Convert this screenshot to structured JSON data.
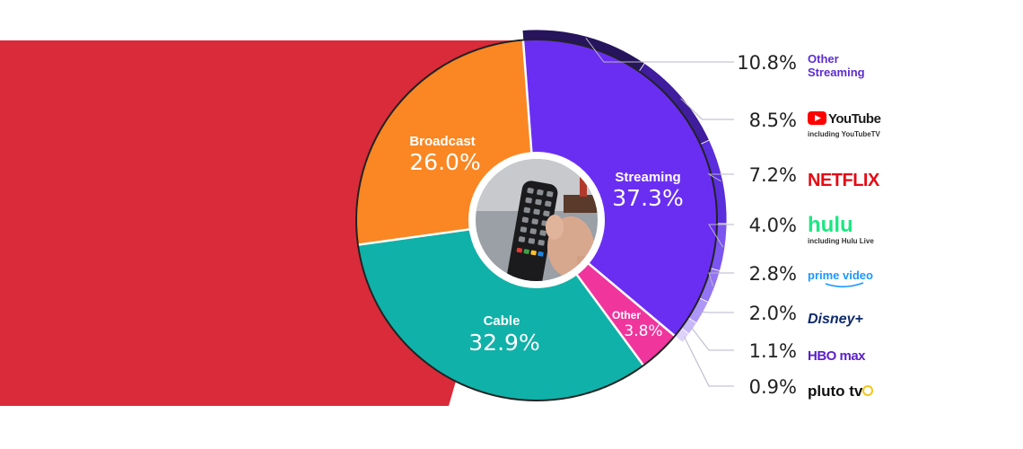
{
  "chart_data": {
    "type": "pie",
    "donut": true,
    "segments": [
      {
        "name": "Streaming",
        "value": 37.3,
        "label": "37.3%",
        "color": "#6a2ef2"
      },
      {
        "name": "Other",
        "value": 3.8,
        "label": "3.8%",
        "color": "#f0359d"
      },
      {
        "name": "Cable",
        "value": 32.9,
        "label": "32.9%",
        "color": "#10b1a8"
      },
      {
        "name": "Broadcast",
        "value": 26.0,
        "label": "26.0%",
        "color": "#fa8723"
      }
    ],
    "streaming_breakdown": [
      {
        "name": "Other Streaming",
        "value": 10.8,
        "label": "10.8%",
        "color": "#26145c",
        "brand": "other-streaming"
      },
      {
        "name": "YouTube",
        "sub": "including YouTubeTV",
        "value": 8.5,
        "label": "8.5%",
        "color": "#3f1d9e",
        "brand": "youtube"
      },
      {
        "name": "NETFLIX",
        "value": 7.2,
        "label": "7.2%",
        "color": "#5a2edc",
        "brand": "netflix"
      },
      {
        "name": "hulu",
        "sub": "including Hulu Live",
        "value": 4.0,
        "label": "4.0%",
        "color": "#7c55f0",
        "brand": "hulu"
      },
      {
        "name": "prime video",
        "value": 2.8,
        "label": "2.8%",
        "color": "#9374f2",
        "brand": "prime"
      },
      {
        "name": "Disney+",
        "value": 2.0,
        "label": "2.0%",
        "color": "#ad96f5",
        "brand": "disney"
      },
      {
        "name": "HBO max",
        "value": 1.1,
        "label": "1.1%",
        "color": "#c6b7f8",
        "brand": "hbomax"
      },
      {
        "name": "pluto tv",
        "value": 0.9,
        "label": "0.9%",
        "color": "#ddd3fb",
        "brand": "pluto"
      }
    ],
    "legend_placement": "right",
    "colors": {
      "red_backdrop": "#d92b3a",
      "outline": "#222222",
      "youtube_red": "#ff0000",
      "netflix_red": "#e50914",
      "hulu_green": "#1ce783",
      "prime_blue": "#1a98ff",
      "brand_purple": "#5b2dd1",
      "hbo_purple": "#5b20c8",
      "pluto_gold": "#f5c518"
    }
  }
}
